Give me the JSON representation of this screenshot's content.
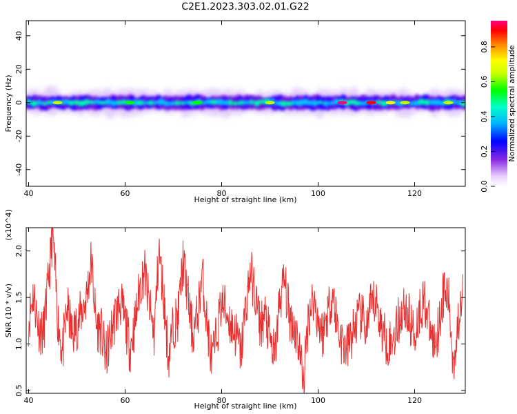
{
  "title": "C2E1.2023.303.02.01.G22",
  "chart_data": [
    {
      "type": "heatmap",
      "xlabel": "Height of straight line (km)",
      "ylabel": "Frequency (Hz)",
      "xlim": [
        39.5,
        130.5
      ],
      "ylim": [
        -50,
        49
      ],
      "xticks": [
        40,
        60,
        80,
        100,
        120
      ],
      "yticks": [
        -40,
        -20,
        0,
        20,
        40
      ],
      "grid": false,
      "colorbar": {
        "label": "Normalized spectral amplitude",
        "range": [
          0,
          0.95
        ],
        "ticks": [
          "0.0",
          "0.2",
          "0.4",
          "0.6",
          "0.8"
        ],
        "tick_values": [
          0.0,
          0.2,
          0.4,
          0.6,
          0.8
        ],
        "colormap": "rainbow-white-to-magenta"
      },
      "band": {
        "center_hz": 0,
        "core_half_width_hz": 3,
        "faint_half_width_hz": 8,
        "hotspots": [
          {
            "x": 46,
            "v": 0.6
          },
          {
            "x": 61,
            "v": 0.55
          },
          {
            "x": 75,
            "v": 0.55
          },
          {
            "x": 90,
            "v": 0.6
          },
          {
            "x": 105,
            "v": 0.9
          },
          {
            "x": 111,
            "v": 0.85
          },
          {
            "x": 115,
            "v": 0.7
          },
          {
            "x": 118,
            "v": 0.6
          },
          {
            "x": 127,
            "v": 0.6
          }
        ]
      }
    },
    {
      "type": "line",
      "xlabel": "Height of straight line (km)",
      "ylabel": "SNR (10 * v/v)",
      "y_multiplier": "(x10^4)",
      "xlim": [
        39.5,
        130.5
      ],
      "ylim": [
        0.47,
        2.25
      ],
      "xticks": [
        40,
        60,
        80,
        100,
        120
      ],
      "yticks": [
        0.5,
        1.0,
        1.5,
        2.0
      ],
      "ytick_labels": [
        "0.5",
        "1.0",
        "1.5",
        "2.0"
      ],
      "grid": false,
      "series": [
        {
          "color": "#e83030",
          "x": [
            40,
            41,
            42,
            43,
            44,
            45,
            46,
            47,
            48,
            49,
            50,
            51,
            52,
            53,
            54,
            55,
            56,
            57,
            58,
            59,
            60,
            61,
            62,
            63,
            64,
            65,
            66,
            67,
            68,
            69,
            70,
            71,
            72,
            73,
            74,
            75,
            76,
            77,
            78,
            79,
            80,
            81,
            82,
            83,
            84,
            85,
            86,
            87,
            88,
            89,
            90,
            91,
            92,
            93,
            94,
            95,
            96,
            97,
            98,
            99,
            100,
            101,
            102,
            103,
            104,
            105,
            106,
            107,
            108,
            109,
            110,
            111,
            112,
            113,
            114,
            115,
            116,
            117,
            118,
            119,
            120,
            121,
            122,
            123,
            124,
            125,
            126,
            127,
            128,
            129,
            130
          ],
          "y": [
            1.25,
            1.55,
            1.2,
            1.1,
            1.6,
            2.2,
            1.3,
            0.9,
            1.4,
            1.1,
            1.2,
            1.35,
            1.5,
            1.9,
            1.2,
            1.15,
            0.85,
            1.1,
            1.3,
            1.45,
            1.25,
            0.95,
            1.2,
            1.6,
            1.8,
            1.4,
            1.1,
            2.0,
            1.5,
            0.85,
            1.2,
            1.3,
            1.9,
            1.5,
            1.1,
            1.3,
            1.75,
            1.2,
            0.8,
            1.1,
            1.45,
            1.35,
            1.2,
            1.1,
            0.9,
            1.4,
            1.8,
            1.5,
            1.2,
            1.3,
            1.05,
            0.85,
            1.45,
            1.7,
            1.3,
            1.2,
            1.0,
            0.6,
            1.3,
            1.5,
            1.25,
            1.1,
            1.35,
            1.55,
            1.2,
            1.0,
            0.95,
            1.1,
            1.25,
            1.3,
            1.15,
            1.4,
            1.45,
            1.2,
            1.05,
            1.0,
            1.15,
            1.3,
            1.4,
            1.25,
            1.1,
            1.35,
            1.5,
            1.2,
            1.0,
            1.2,
            1.55,
            1.5,
            0.8,
            1.2,
            1.75
          ]
        }
      ]
    }
  ]
}
